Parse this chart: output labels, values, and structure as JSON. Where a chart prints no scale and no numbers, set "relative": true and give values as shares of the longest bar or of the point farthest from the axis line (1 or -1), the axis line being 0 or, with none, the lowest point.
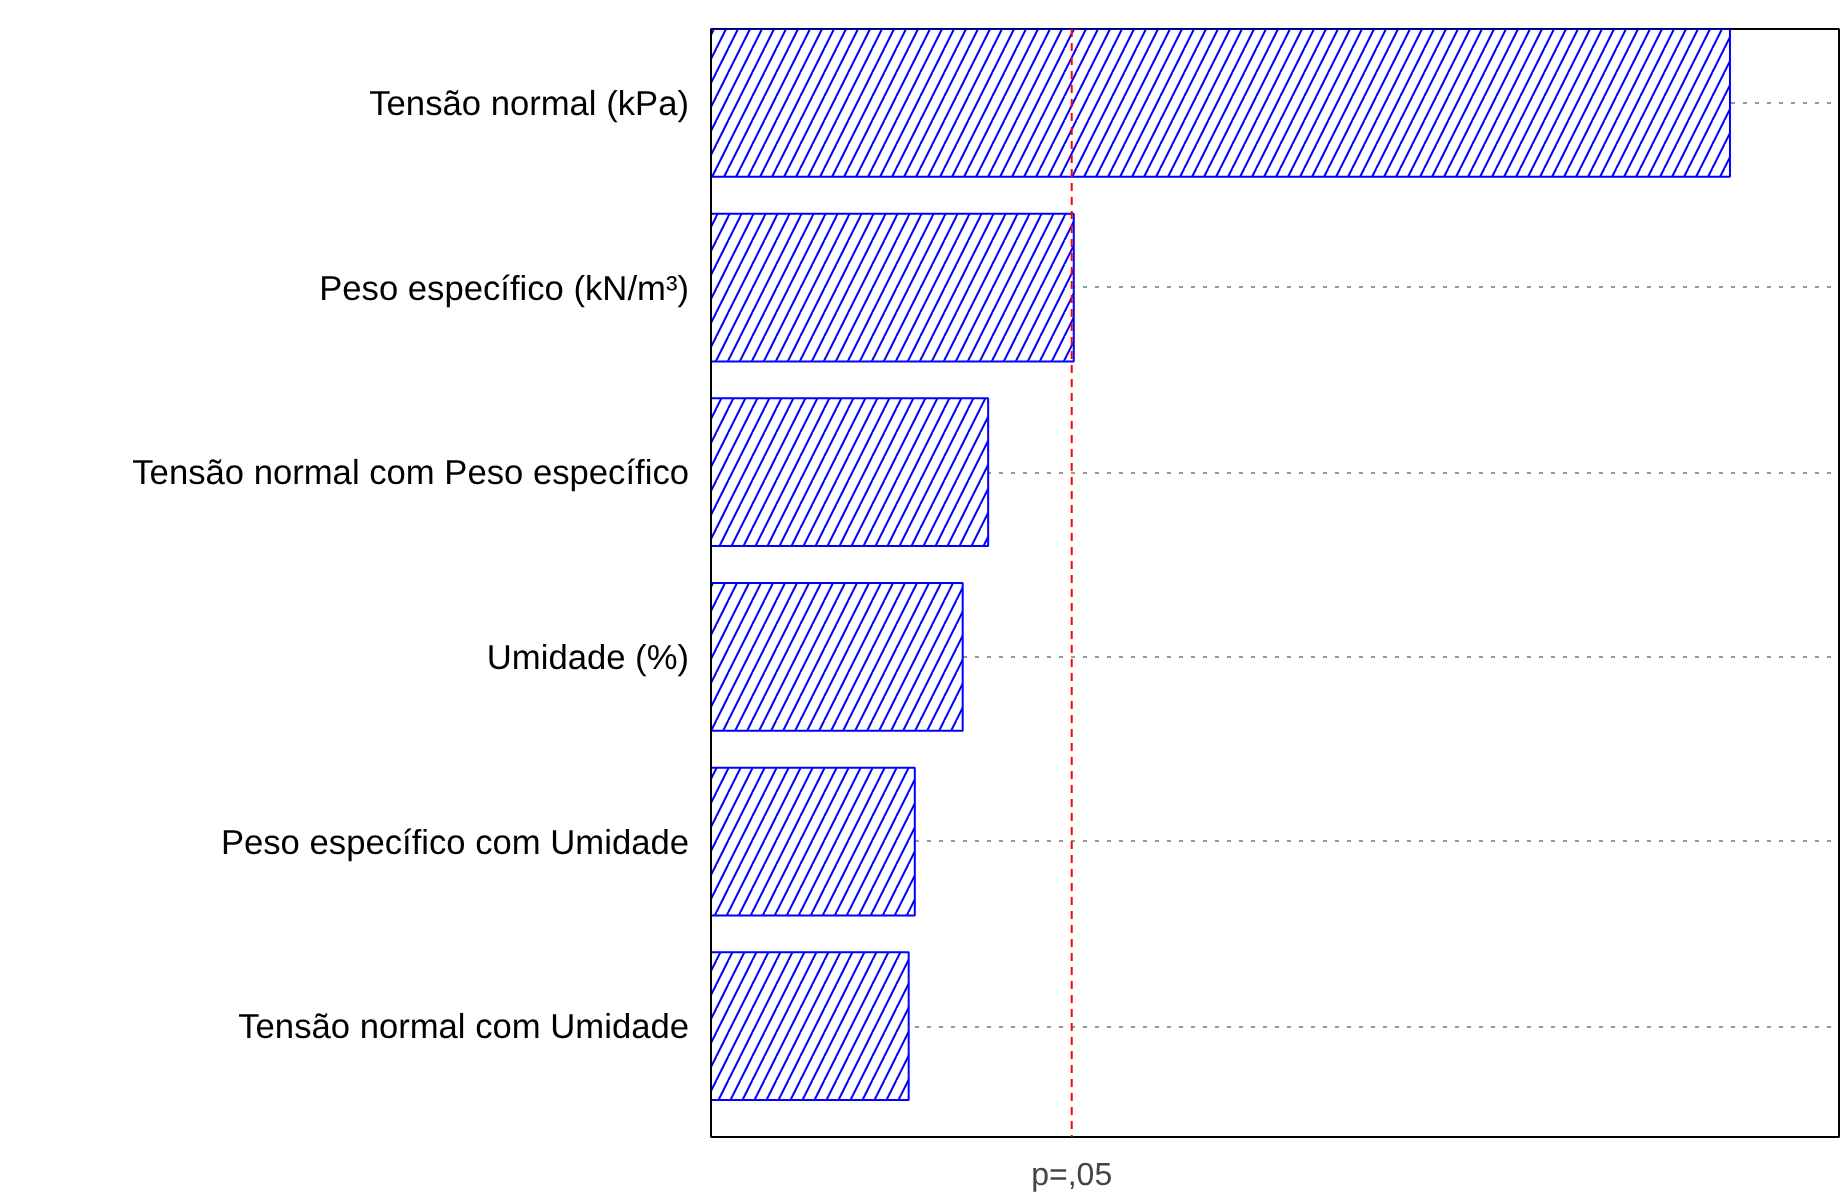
{
  "chart_data": {
    "type": "bar",
    "orientation": "horizontal",
    "relative": true,
    "categories": [
      "Tensão normal (kPa)",
      "Peso específico (kN/m³)",
      "Tensão normal com Peso específico",
      "Umidade (%)",
      "Peso específico com Umidade",
      "Tensão normal com Umidade"
    ],
    "values": [
      1,
      0.356,
      0.272,
      0.247,
      0.2,
      0.194
    ],
    "color": "#0000ff",
    "grid": "y",
    "ref_lines": [
      {
        "axis": "x",
        "value": 0.354,
        "label": "p=,05",
        "color": "#ff0000",
        "line_style": "dashed"
      }
    ]
  }
}
